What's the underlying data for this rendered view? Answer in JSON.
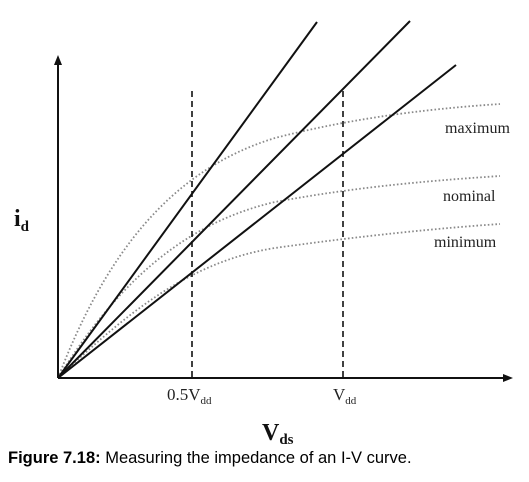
{
  "diagram": {
    "y_axis_label": {
      "main": "i",
      "sub": "d"
    },
    "x_axis_label": {
      "main": "V",
      "sub": "ds"
    },
    "x_tick_labels": [
      {
        "main": "0.5V",
        "sub": "dd"
      },
      {
        "main": "V",
        "sub": "dd"
      }
    ],
    "curve_labels": [
      "maximum",
      "nominal",
      "minimum"
    ],
    "colors": {
      "axis": "#111111",
      "impedance_line": "#111111",
      "iv_curve": "#8a8a8a",
      "dashed_marker": "#111111"
    }
  },
  "caption": {
    "bold": "Figure 7.18:",
    "text": " Measuring the impedance of an I-V curve."
  }
}
